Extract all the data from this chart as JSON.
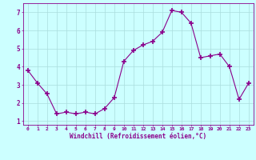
{
  "x": [
    0,
    1,
    2,
    3,
    4,
    5,
    6,
    7,
    8,
    9,
    10,
    11,
    12,
    13,
    14,
    15,
    16,
    17,
    18,
    19,
    20,
    21,
    22,
    23
  ],
  "y": [
    3.8,
    3.1,
    2.5,
    1.4,
    1.5,
    1.4,
    1.5,
    1.4,
    1.7,
    2.3,
    4.3,
    4.9,
    5.2,
    5.4,
    5.9,
    7.1,
    7.0,
    6.4,
    4.5,
    4.6,
    4.7,
    4.0,
    2.2,
    3.1
  ],
  "line_color": "#8b008b",
  "marker": "+",
  "marker_size": 4,
  "bg_color": "#ccffff",
  "grid_color": "#aadddd",
  "xlabel": "Windchill (Refroidissement éolien,°C)",
  "xlabel_color": "#8b008b",
  "tick_color": "#8b008b",
  "ylabel_ticks": [
    1,
    2,
    3,
    4,
    5,
    6,
    7
  ],
  "xlim": [
    -0.5,
    23.5
  ],
  "ylim": [
    0.8,
    7.5
  ],
  "xticks": [
    0,
    1,
    2,
    3,
    4,
    5,
    6,
    7,
    8,
    9,
    10,
    11,
    12,
    13,
    14,
    15,
    16,
    17,
    18,
    19,
    20,
    21,
    22,
    23
  ],
  "spine_color": "#8b008b",
  "linewidth": 0.8,
  "marker_linewidth": 1.2
}
